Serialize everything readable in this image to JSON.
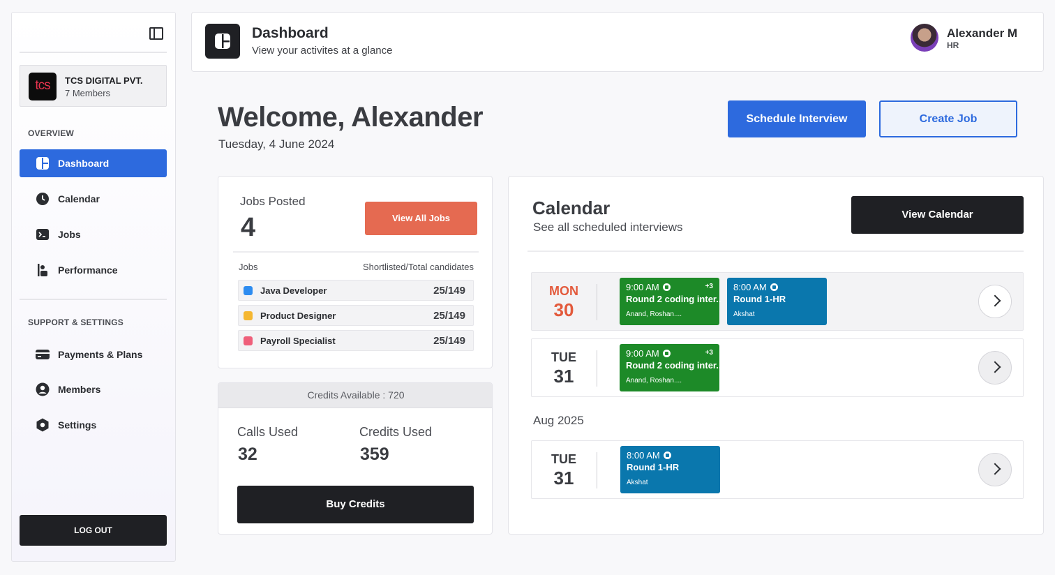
{
  "sidebar": {
    "org": {
      "logo_text": "tcs",
      "name": "TCS DIGITAL PVT.",
      "members": "7 Members"
    },
    "overview_label": "OVERVIEW",
    "support_label": "SUPPORT & SETTINGS",
    "overview_items": [
      {
        "label": "Dashboard",
        "icon": "dashboard-icon",
        "active": true
      },
      {
        "label": "Calendar",
        "icon": "clock-icon"
      },
      {
        "label": "Jobs",
        "icon": "terminal-icon"
      },
      {
        "label": "Performance",
        "icon": "performance-icon"
      }
    ],
    "support_items": [
      {
        "label": "Payments & Plans",
        "icon": "card-icon"
      },
      {
        "label": "Members",
        "icon": "user-icon"
      },
      {
        "label": "Settings",
        "icon": "settings-icon"
      }
    ],
    "logout_label": "LOG OUT"
  },
  "header": {
    "title": "Dashboard",
    "subtitle": "View your activites at a glance",
    "user_name": "Alexander M",
    "user_role": "HR"
  },
  "welcome": {
    "title": "Welcome, Alexander",
    "date": "Tuesday, 4 June 2024",
    "schedule_label": "Schedule Interview",
    "create_label": "Create Job"
  },
  "jobs": {
    "posted_label": "Jobs Posted",
    "posted_count": "4",
    "view_all_label": "View All Jobs",
    "col_jobs": "Jobs",
    "col_shortlisted": "Shortlisted/Total candidates",
    "rows": [
      {
        "name": "Java Developer",
        "count": "25/149",
        "color": "#2d8cf0"
      },
      {
        "name": "Product Designer",
        "count": "25/149",
        "color": "#f5b731"
      },
      {
        "name": "Payroll Specialist",
        "count": "25/149",
        "color": "#ef5f7a"
      }
    ]
  },
  "credits": {
    "available": "Credits Available : 720",
    "calls_label": "Calls Used",
    "calls_value": "32",
    "credits_label": "Credits Used",
    "credits_value": "359",
    "buy_label": "Buy Credits"
  },
  "calendar": {
    "title": "Calendar",
    "subtitle": "See all scheduled interviews",
    "view_label": "View Calendar",
    "month_label": "Aug 2025",
    "days": [
      {
        "weekday": "MON",
        "day": "30",
        "events": [
          {
            "time": "9:00 AM",
            "plus": "+3",
            "round": "Round 2 coding inter..",
            "people": "Anand, Roshan...."
          },
          {
            "time": "8:00 AM",
            "plus": "",
            "round": "Round 1-HR",
            "people": "Akshat"
          }
        ]
      },
      {
        "weekday": "TUE",
        "day": "31",
        "events": [
          {
            "time": "9:00 AM",
            "plus": "+3",
            "round": "Round 2 coding inter..",
            "people": "Anand, Roshan...."
          }
        ]
      },
      {
        "weekday": "TUE",
        "day": "31",
        "events": [
          {
            "time": "8:00 AM",
            "plus": "",
            "round": "Round 1-HR",
            "people": "Akshat"
          }
        ]
      }
    ]
  }
}
